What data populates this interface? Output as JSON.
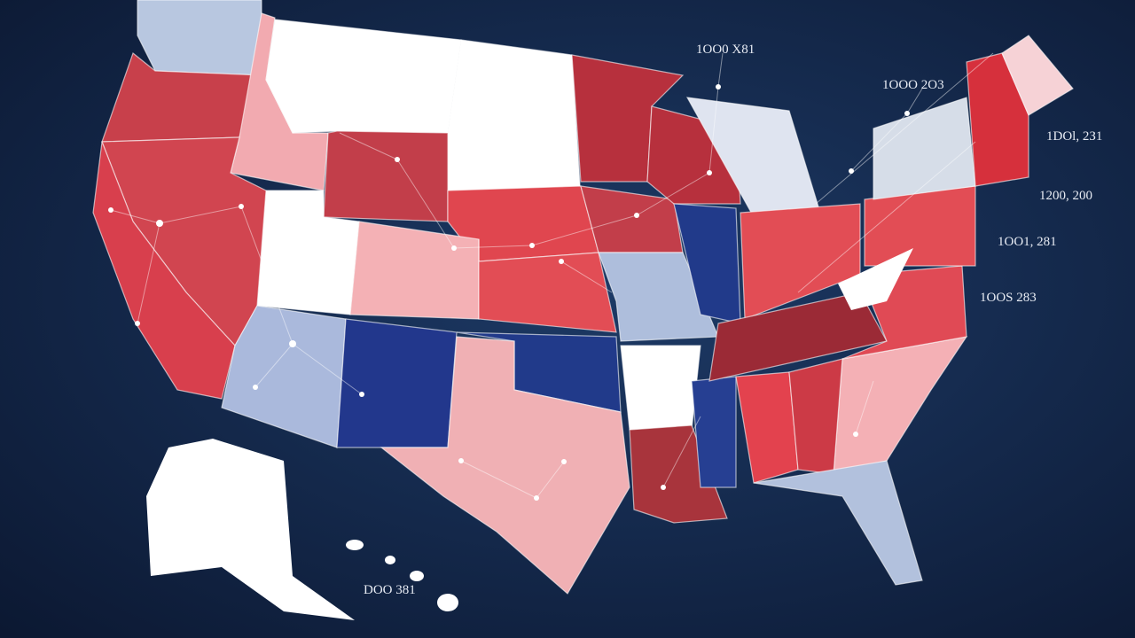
{
  "labels": [
    "1OO0 X81",
    "1OOO 2O3",
    "1DOl, 2З1",
    "1200, 200",
    "1OO1, 281",
    "1OOS 283",
    "DOO 381"
  ]
}
